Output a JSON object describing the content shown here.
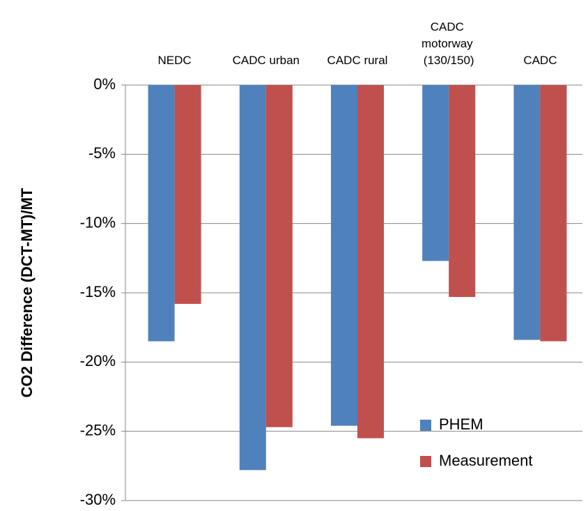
{
  "chart_data": {
    "type": "bar",
    "y_label": "CO2 Difference (DCT-MT)/MT",
    "categories": [
      "NEDC",
      "CADC urban",
      "CADC rural",
      "CADC motorway (130/150)",
      "CADC"
    ],
    "series": [
      {
        "name": "PHEM",
        "color": "#4f81bd",
        "values": [
          -18.5,
          -27.8,
          -24.6,
          -12.7,
          -18.4
        ]
      },
      {
        "name": "Measurement",
        "color": "#c0504d",
        "values": [
          -15.8,
          -24.7,
          -25.5,
          -15.3,
          -18.5
        ]
      }
    ],
    "ylim": [
      -30,
      0
    ],
    "yticks": [
      {
        "value": 0,
        "label": "0%"
      },
      {
        "value": -5,
        "label": "-5%"
      },
      {
        "value": -10,
        "label": "-10%"
      },
      {
        "value": -15,
        "label": "-15%"
      },
      {
        "value": -20,
        "label": "-20%"
      },
      {
        "value": -25,
        "label": "-25%"
      },
      {
        "value": -30,
        "label": "-30%"
      }
    ],
    "grid": true,
    "legend": "lower right"
  }
}
